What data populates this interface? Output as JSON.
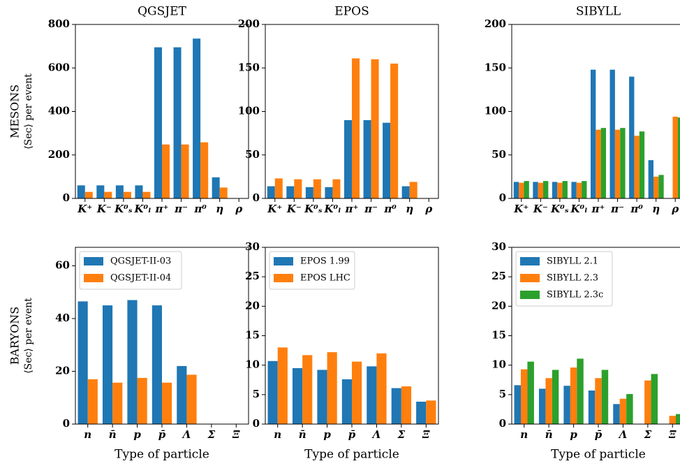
{
  "chart_data": [
    {
      "type": "bar",
      "title": "QGSJET",
      "y_label": [
        "MESONS",
        "⟨Sec⟩ per event"
      ],
      "categories": [
        "K⁺",
        "K⁻",
        "K⁰ₛ",
        "K⁰ₗ",
        "π⁺",
        "π⁻",
        "π⁰",
        "η",
        "ρ"
      ],
      "series": [
        {
          "color": "#1f77b4",
          "values": [
            60,
            60,
            60,
            60,
            695,
            695,
            735,
            97,
            0
          ]
        },
        {
          "color": "#ff7f0e",
          "values": [
            30,
            30,
            30,
            30,
            248,
            248,
            258,
            50,
            0
          ]
        }
      ],
      "ylim": [
        0,
        800
      ],
      "yticks": [
        0,
        200,
        400,
        600,
        800
      ]
    },
    {
      "type": "bar",
      "title": "EPOS",
      "categories": [
        "K⁺",
        "K⁻",
        "K⁰ₛ",
        "K⁰ₗ",
        "π⁺",
        "π⁻",
        "π⁰",
        "η",
        "ρ"
      ],
      "series": [
        {
          "color": "#1f77b4",
          "values": [
            14,
            14,
            13,
            13,
            90,
            90,
            87,
            14,
            0
          ]
        },
        {
          "color": "#ff7f0e",
          "values": [
            23,
            22,
            22,
            22,
            161,
            160,
            155,
            19,
            0
          ]
        }
      ],
      "ylim": [
        0,
        200
      ],
      "yticks": [
        0,
        50,
        100,
        150,
        200
      ]
    },
    {
      "type": "bar",
      "title": "SIBYLL",
      "categories": [
        "K⁺",
        "K⁻",
        "K⁰ₛ",
        "K⁰ₗ",
        "π⁺",
        "π⁻",
        "π⁰",
        "η",
        "ρ"
      ],
      "series": [
        {
          "color": "#1f77b4",
          "values": [
            19,
            19,
            19,
            19,
            148,
            148,
            140,
            44,
            0
          ]
        },
        {
          "color": "#ff7f0e",
          "values": [
            18,
            18,
            18,
            18,
            79,
            79,
            72,
            25,
            94
          ]
        },
        {
          "color": "#2ca02c",
          "values": [
            20,
            20,
            20,
            20,
            81,
            81,
            77,
            27,
            93
          ]
        }
      ],
      "ylim": [
        0,
        200
      ],
      "yticks": [
        0,
        50,
        100,
        150,
        200
      ]
    },
    {
      "type": "bar",
      "y_label": [
        "BARYONS",
        "⟨Sec⟩ per event"
      ],
      "x_label": "Type of particle",
      "categories": [
        "n",
        "n̄",
        "p",
        "p̄",
        "Λ",
        "Σ",
        "Ξ"
      ],
      "series": [
        {
          "name": "QGSJET-II-03",
          "color": "#1f77b4",
          "values": [
            46.5,
            45,
            47,
            45,
            22,
            0,
            0
          ]
        },
        {
          "name": "QGSJET-II-04",
          "color": "#ff7f0e",
          "values": [
            17,
            15.7,
            17.5,
            15.7,
            18.7,
            0,
            0
          ]
        }
      ],
      "ylim": [
        0,
        67
      ],
      "yticks": [
        0,
        20,
        40,
        60
      ],
      "legend": "upper left"
    },
    {
      "type": "bar",
      "x_label": "Type of particle",
      "categories": [
        "n",
        "n̄",
        "p",
        "p̄",
        "Λ",
        "Σ",
        "Ξ"
      ],
      "series": [
        {
          "name": "EPOS 1.99",
          "color": "#1f77b4",
          "values": [
            10.7,
            9.5,
            9.2,
            7.6,
            9.8,
            6.1,
            3.8
          ]
        },
        {
          "name": "EPOS LHC",
          "color": "#ff7f0e",
          "values": [
            13,
            11.7,
            12.2,
            10.6,
            12,
            6.4,
            4.0
          ]
        }
      ],
      "ylim": [
        0,
        30
      ],
      "yticks": [
        0,
        5,
        10,
        15,
        20,
        25,
        30
      ],
      "legend": "upper left"
    },
    {
      "type": "bar",
      "x_label": "Type of particle",
      "categories": [
        "n",
        "n̄",
        "p",
        "p̄",
        "Λ",
        "Σ",
        "Ξ"
      ],
      "series": [
        {
          "name": "SIBYLL 2.1",
          "color": "#1f77b4",
          "values": [
            6.6,
            6.0,
            6.5,
            5.7,
            3.4,
            0,
            0
          ]
        },
        {
          "name": "SIBYLL 2.3",
          "color": "#ff7f0e",
          "values": [
            9.3,
            7.8,
            9.6,
            7.8,
            4.3,
            7.4,
            1.4
          ]
        },
        {
          "name": "SIBYLL 2.3c",
          "color": "#2ca02c",
          "values": [
            10.6,
            9.2,
            11.1,
            9.2,
            5.1,
            8.5,
            1.7
          ]
        }
      ],
      "ylim": [
        0,
        30
      ],
      "yticks": [
        0,
        5,
        10,
        15,
        20,
        25,
        30
      ],
      "legend": "upper left"
    }
  ]
}
